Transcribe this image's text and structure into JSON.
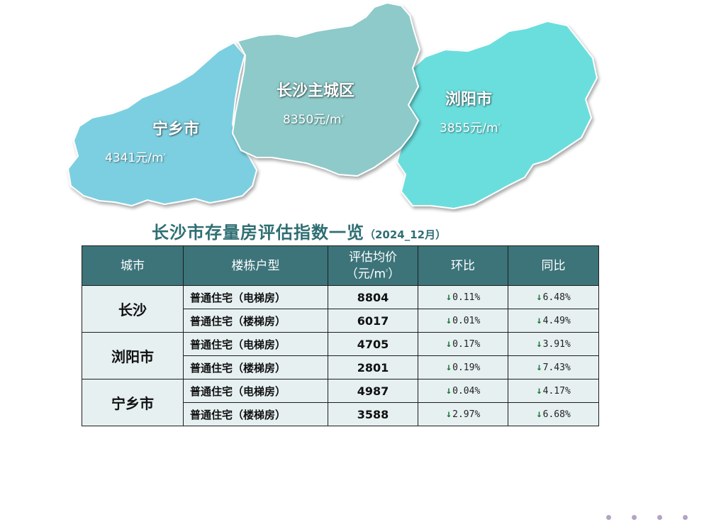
{
  "map": {
    "regions": [
      {
        "name": "宁乡市",
        "price": "4341元/m",
        "unit_sup": "²",
        "color": "#7ccfe0"
      },
      {
        "name": "长沙主城区",
        "price": "8350元/m",
        "unit_sup": "²",
        "color": "#8dcac9"
      },
      {
        "name": "浏阳市",
        "price": "3855元/m",
        "unit_sup": "²",
        "color": "#6adedd"
      }
    ]
  },
  "table": {
    "title": "长沙市存量房评估指数一览",
    "subtitle": "（2024_12月）",
    "headers": [
      "城市",
      "楼栋户型",
      "评估均价",
      "（元/m",
      "²",
      "）",
      "环比",
      "同比"
    ],
    "groups": [
      {
        "city": "长沙",
        "rows": [
          {
            "type": "普通住宅（电梯房）",
            "price": "8804",
            "mom": "0.11%",
            "yoy": "6.48%"
          },
          {
            "type": "普通住宅（楼梯房）",
            "price": "6017",
            "mom": "0.01%",
            "yoy": "4.49%"
          }
        ]
      },
      {
        "city": "浏阳市",
        "rows": [
          {
            "type": "普通住宅（电梯房）",
            "price": "4705",
            "mom": "0.17%",
            "yoy": "3.91%"
          },
          {
            "type": "普通住宅（楼梯房）",
            "price": "2801",
            "mom": "0.19%",
            "yoy": "7.43%"
          }
        ]
      },
      {
        "city": "宁乡市",
        "rows": [
          {
            "type": "普通住宅（电梯房）",
            "price": "4987",
            "mom": "0.04%",
            "yoy": "4.17%"
          },
          {
            "type": "普通住宅（楼梯房）",
            "price": "3588",
            "mom": "2.97%",
            "yoy": "6.68%"
          }
        ]
      }
    ],
    "arrow_glyph": "↓",
    "arrow_color": "#1a7a3a"
  },
  "pager": {
    "dot_count": 4
  }
}
